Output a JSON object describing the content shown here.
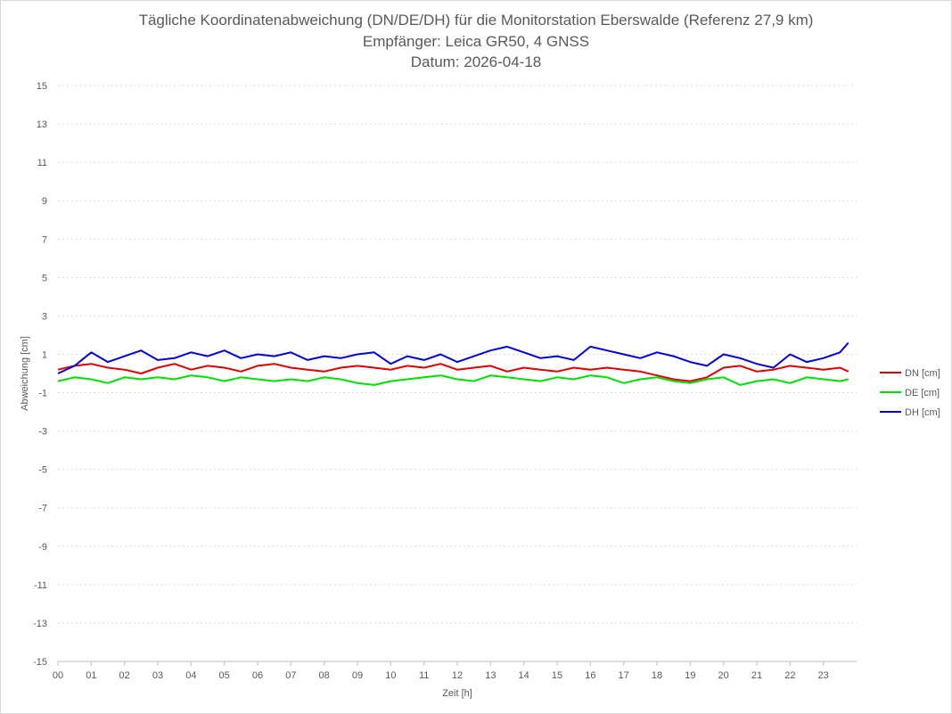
{
  "chart_data": {
    "type": "line",
    "title": "Tägliche Koordinatenabweichung (DN/DE/DH) für die Monitorstation Eberswalde (Referenz 27,9 km)",
    "subtitle_1": "Empfänger: Leica GR50, 4 GNSS",
    "subtitle_2": "Datum: 2026-04-18",
    "xlabel": "Zeit [h]",
    "ylabel": "Abweichung [cm]",
    "xlim": [
      0,
      24
    ],
    "ylim": [
      -15,
      15
    ],
    "x_ticks": [
      "00",
      "01",
      "02",
      "03",
      "04",
      "05",
      "06",
      "07",
      "08",
      "09",
      "10",
      "11",
      "12",
      "13",
      "14",
      "15",
      "16",
      "17",
      "18",
      "19",
      "20",
      "21",
      "22",
      "23"
    ],
    "y_ticks": [
      15,
      13,
      11,
      9,
      7,
      5,
      3,
      1,
      -1,
      -3,
      -5,
      -7,
      -9,
      -11,
      -13,
      -15
    ],
    "y_tick_labels": [
      "15",
      "13",
      "11",
      "9",
      "7",
      "5",
      "3",
      "1",
      "-1",
      "-3",
      "-5",
      "-7",
      "-9",
      "-11",
      "-13",
      "-15"
    ],
    "grid": "horizontal-dotted",
    "legend_position": "right",
    "x": [
      0,
      0.5,
      1,
      1.5,
      2,
      2.5,
      3,
      3.5,
      4,
      4.5,
      5,
      5.5,
      6,
      6.5,
      7,
      7.5,
      8,
      8.5,
      9,
      9.5,
      10,
      10.5,
      11,
      11.5,
      12,
      12.5,
      13,
      13.5,
      14,
      14.5,
      15,
      15.5,
      16,
      16.5,
      17,
      17.5,
      18,
      18.5,
      19,
      19.5,
      20,
      20.5,
      21,
      21.5,
      22,
      22.5,
      23,
      23.5,
      23.75
    ],
    "series": [
      {
        "name": "DN [cm]",
        "color": "#e00000",
        "values": [
          0.2,
          0.4,
          0.5,
          0.3,
          0.2,
          0.0,
          0.3,
          0.5,
          0.2,
          0.4,
          0.3,
          0.1,
          0.4,
          0.5,
          0.3,
          0.2,
          0.1,
          0.3,
          0.4,
          0.3,
          0.2,
          0.4,
          0.3,
          0.5,
          0.2,
          0.3,
          0.4,
          0.1,
          0.3,
          0.2,
          0.1,
          0.3,
          0.2,
          0.3,
          0.2,
          0.1,
          -0.1,
          -0.3,
          -0.4,
          -0.2,
          0.3,
          0.4,
          0.1,
          0.2,
          0.4,
          0.3,
          0.2,
          0.3,
          0.1
        ]
      },
      {
        "name": "DE [cm]",
        "color": "#00e000",
        "values": [
          -0.4,
          -0.2,
          -0.3,
          -0.5,
          -0.2,
          -0.3,
          -0.2,
          -0.3,
          -0.1,
          -0.2,
          -0.4,
          -0.2,
          -0.3,
          -0.4,
          -0.3,
          -0.4,
          -0.2,
          -0.3,
          -0.5,
          -0.6,
          -0.4,
          -0.3,
          -0.2,
          -0.1,
          -0.3,
          -0.4,
          -0.1,
          -0.2,
          -0.3,
          -0.4,
          -0.2,
          -0.3,
          -0.1,
          -0.2,
          -0.5,
          -0.3,
          -0.2,
          -0.4,
          -0.5,
          -0.3,
          -0.2,
          -0.6,
          -0.4,
          -0.3,
          -0.5,
          -0.2,
          -0.3,
          -0.4,
          -0.3
        ]
      },
      {
        "name": "DH [cm]",
        "color": "#0000e0",
        "values": [
          0.0,
          0.4,
          1.1,
          0.6,
          0.9,
          1.2,
          0.7,
          0.8,
          1.1,
          0.9,
          1.2,
          0.8,
          1.0,
          0.9,
          1.1,
          0.7,
          0.9,
          0.8,
          1.0,
          1.1,
          0.5,
          0.9,
          0.7,
          1.0,
          0.6,
          0.9,
          1.2,
          1.4,
          1.1,
          0.8,
          0.9,
          0.7,
          1.4,
          1.2,
          1.0,
          0.8,
          1.1,
          0.9,
          0.6,
          0.4,
          1.0,
          0.8,
          0.5,
          0.3,
          1.0,
          0.6,
          0.8,
          1.1,
          1.6
        ]
      }
    ]
  }
}
